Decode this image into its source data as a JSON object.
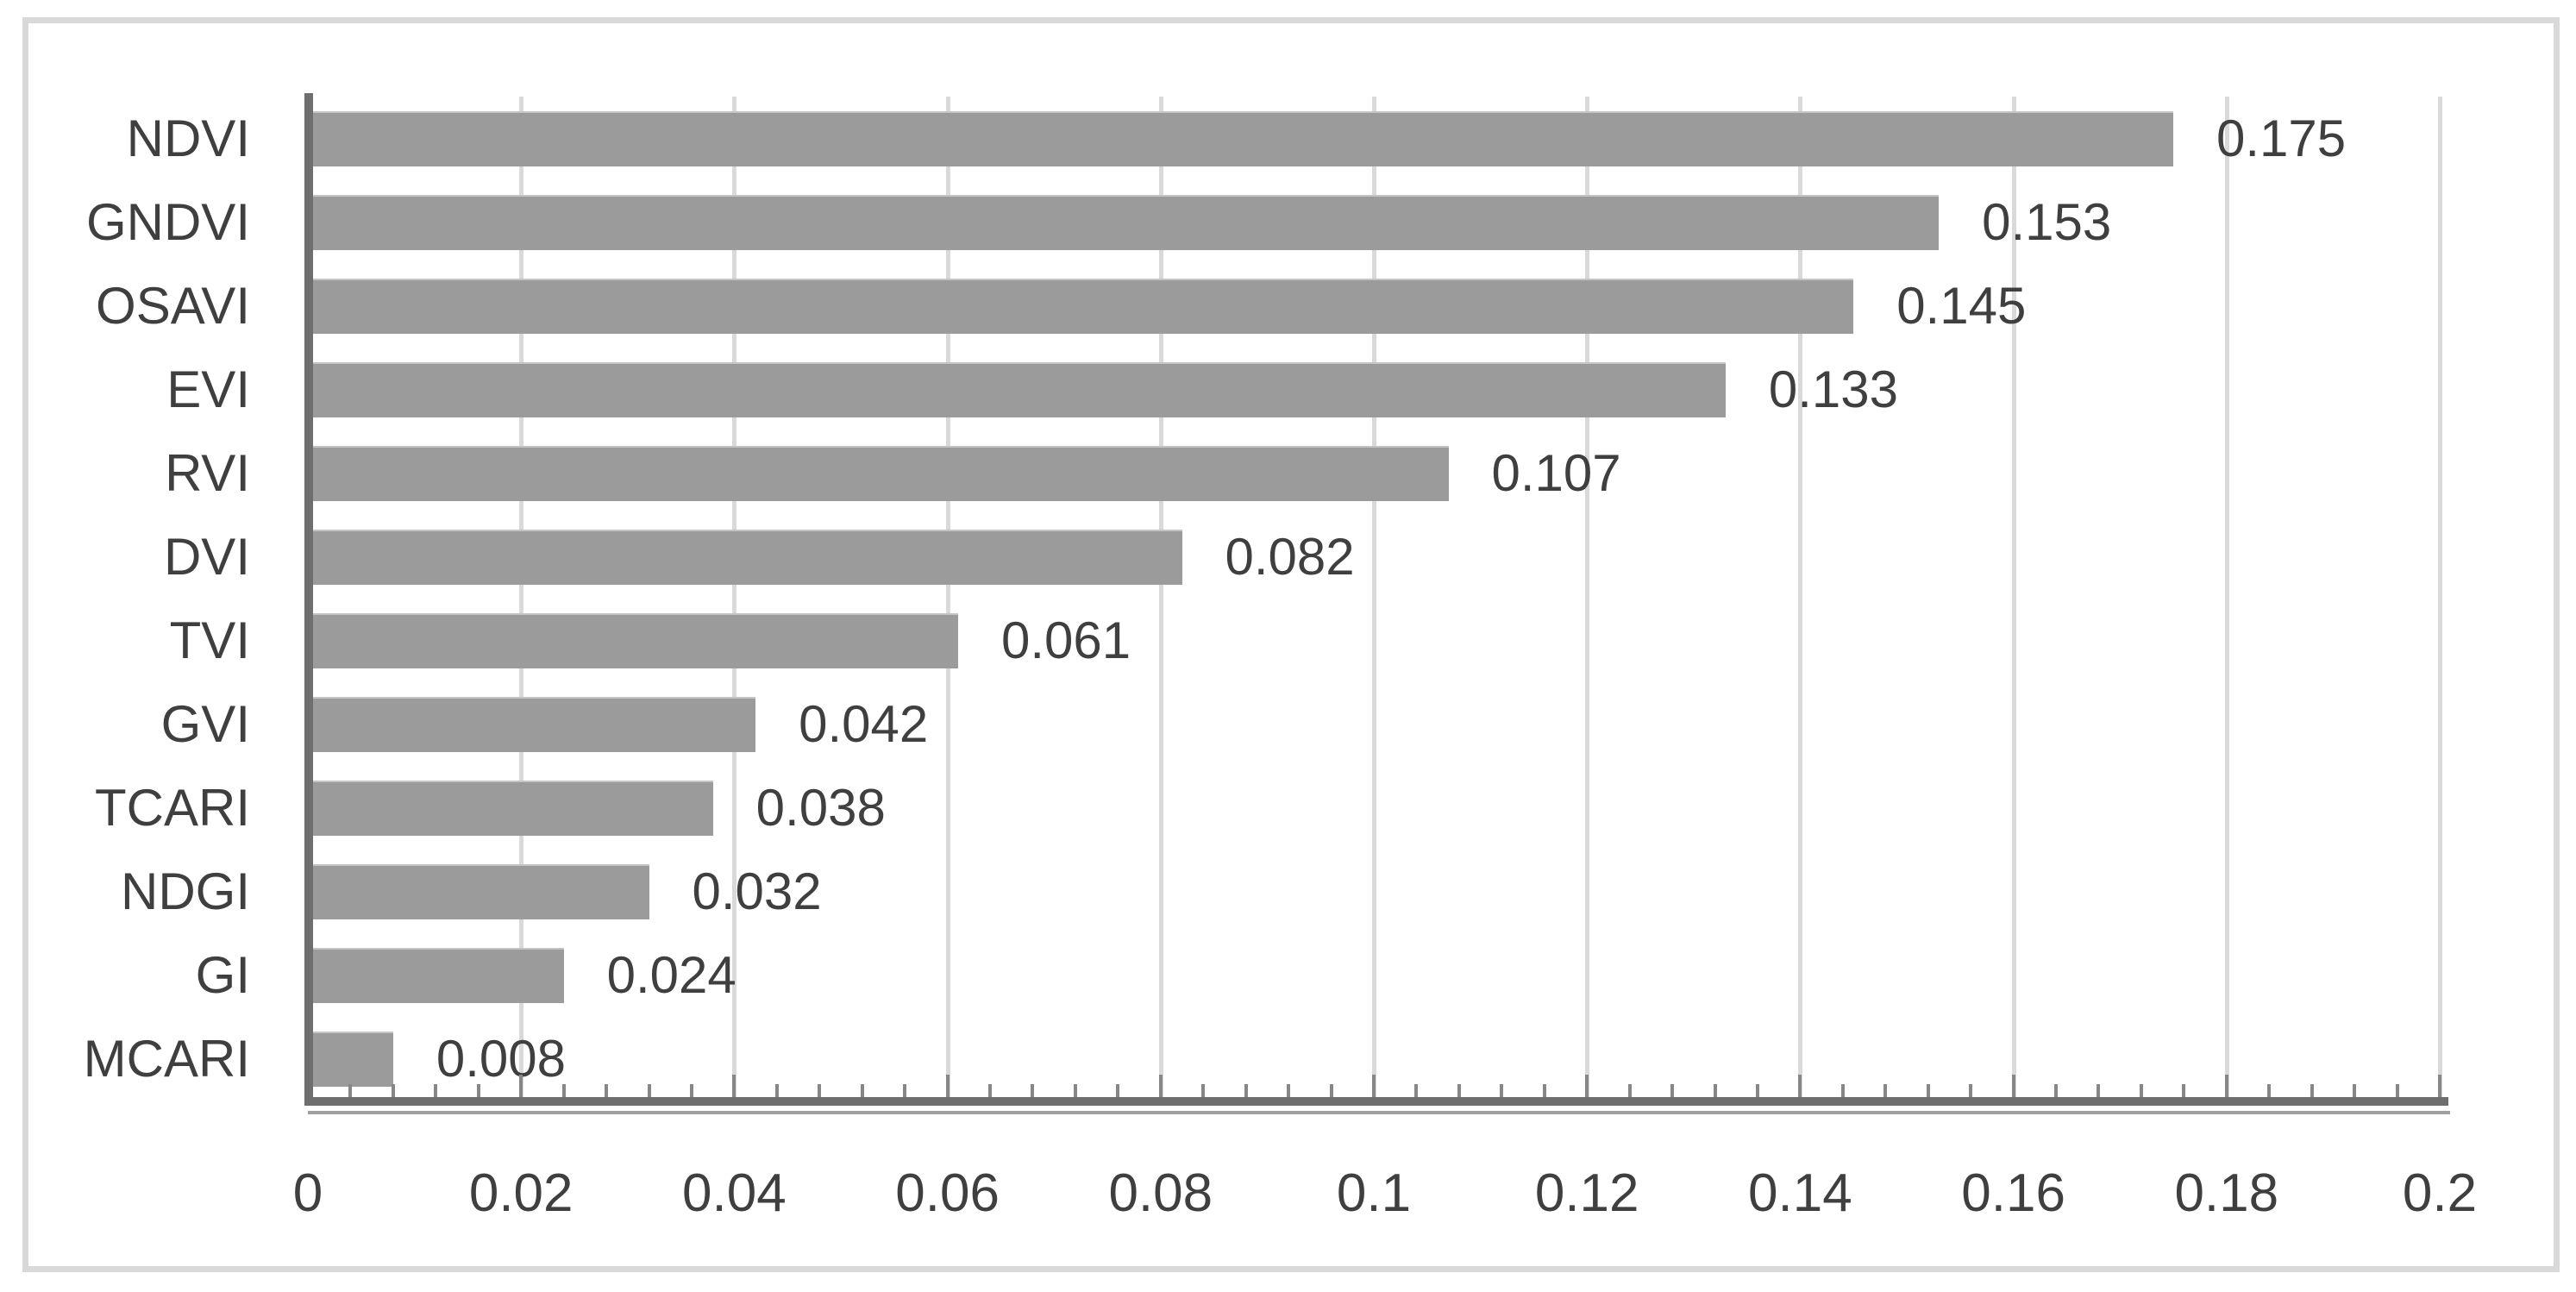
{
  "chart_data": {
    "type": "bar",
    "orientation": "horizontal",
    "title": "",
    "xlabel": "",
    "ylabel": "",
    "categories": [
      "NDVI",
      "GNDVI",
      "OSAVI",
      "EVI",
      "RVI",
      "DVI",
      "TVI",
      "GVI",
      "TCARI",
      "NDGI",
      "GI",
      "MCARI"
    ],
    "values": [
      0.175,
      0.153,
      0.145,
      0.133,
      0.107,
      0.082,
      0.061,
      0.042,
      0.038,
      0.032,
      0.024,
      0.008
    ],
    "data_labels": [
      "0.175",
      "0.153",
      "0.145",
      "0.133",
      "0.107",
      "0.082",
      "0.061",
      "0.042",
      "0.038",
      "0.032",
      "0.024",
      "0.008"
    ],
    "xlim": [
      0,
      0.2
    ],
    "x_tick_labels": [
      "0",
      "0.02",
      "0.04",
      "0.06",
      "0.08",
      "0.1",
      "0.12",
      "0.14",
      "0.16",
      "0.18",
      "0.2"
    ],
    "x_major_tick_interval": 0.02,
    "x_minor_tick_interval": 0.004,
    "grid": "vertical-major-gridlines",
    "legend": "none",
    "colors": {
      "bar": "#9b9b9b",
      "gridline": "#d9d9d9",
      "axis_line": "#6e6e6e",
      "axis_secondary_line": "#a0a0a0",
      "tick": "#878787",
      "text": "#3f3f3f",
      "frame_border": "#d9d9d9",
      "background": "#ffffff"
    }
  }
}
